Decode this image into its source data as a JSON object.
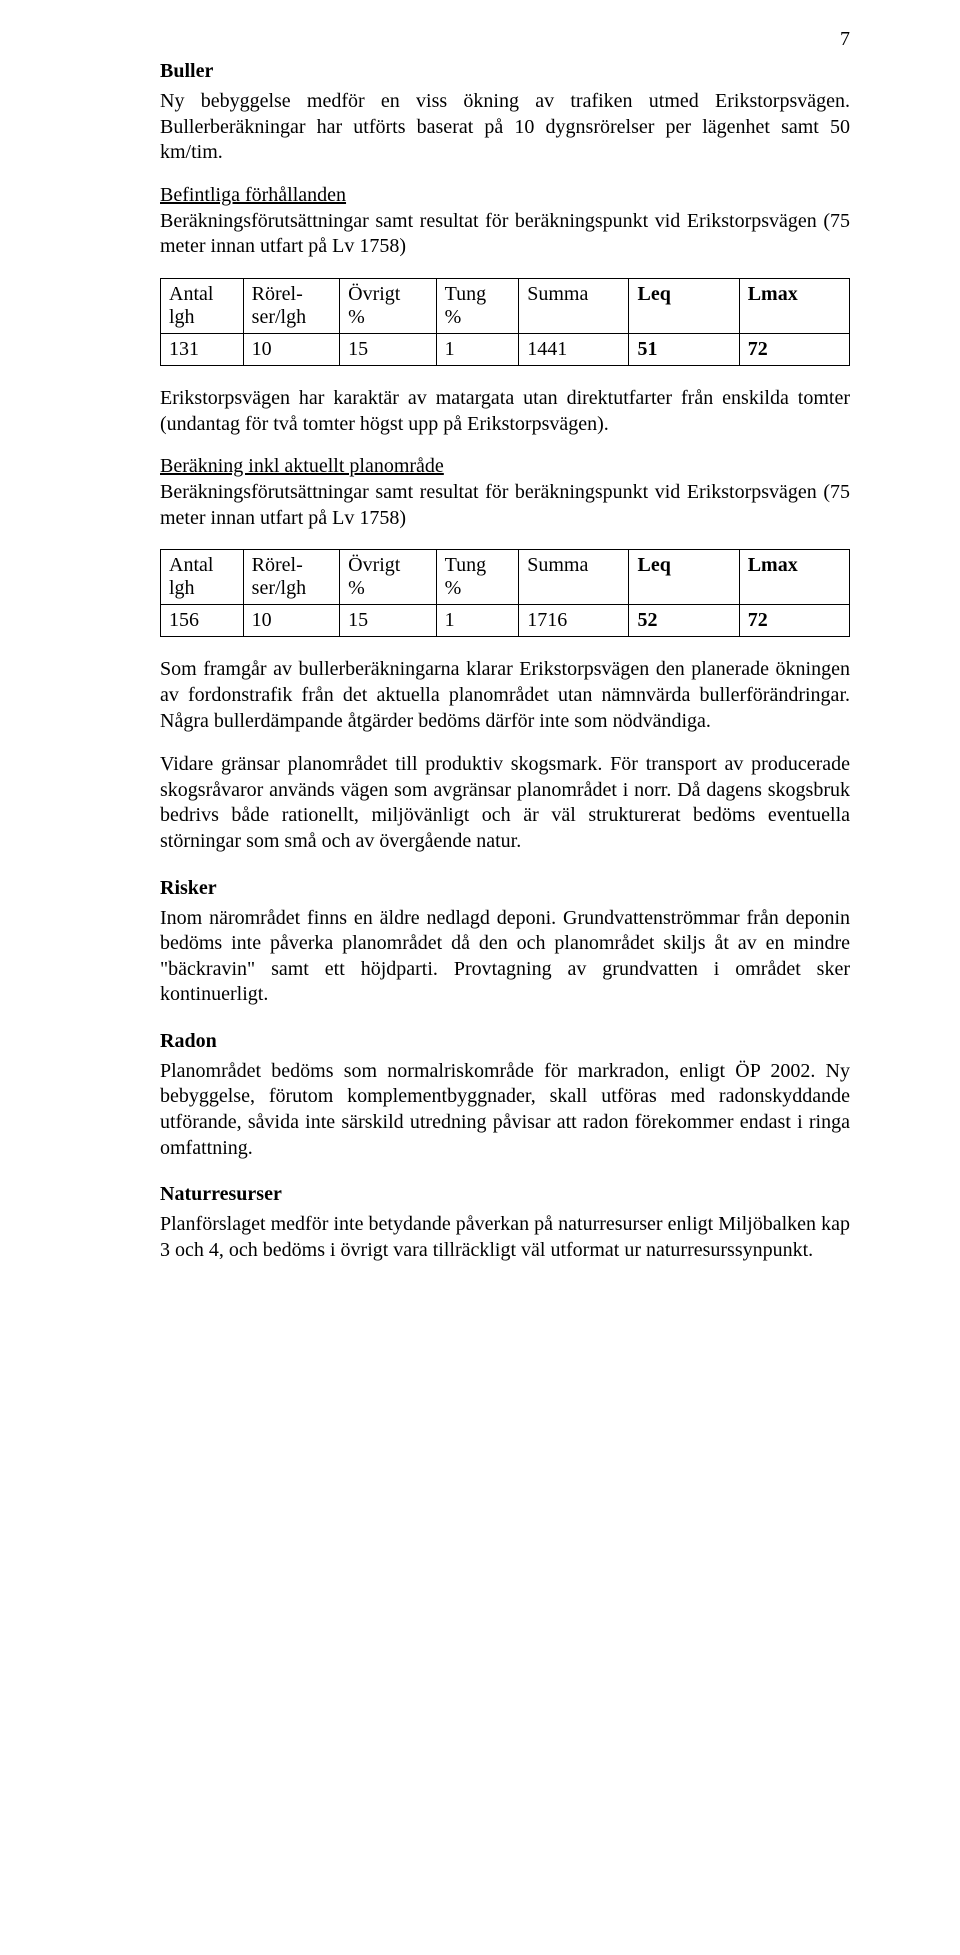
{
  "page_number": "7",
  "section_buller": {
    "heading": "Buller",
    "p1": "Ny bebyggelse medför en viss ökning av trafiken utmed Erikstorpsvägen. Bullerberäkningar har utförts baserat på 10 dygnsrörelser per lägenhet samt 50 km/tim.",
    "before_label": "Befintliga förhållanden",
    "before_text": "Beräkningsförutsättningar samt resultat för beräkningspunkt vid Erikstorpsvägen (75 meter innan utfart på Lv 1758)",
    "table1_headers": {
      "c1a": "Antal",
      "c1b": "lgh",
      "c2a": "Rörel-",
      "c2b": "ser/lgh",
      "c3a": "Övrigt",
      "c3b": "%",
      "c4a": "Tung",
      "c4b": "%",
      "c5": "Summa",
      "c6": "Leq",
      "c7": "Lmax"
    },
    "table1_row": {
      "c1": "131",
      "c2": "10",
      "c3": "15",
      "c4": "1",
      "c5": "1441",
      "c6": "51",
      "c7": "72"
    },
    "mid_text": "Erikstorpsvägen har karaktär av matargata utan direktutfarter från enskilda tomter (undantag för två tomter högst upp på Erikstorpsvägen).",
    "after_label": "Beräkning inkl aktuellt planområde",
    "after_text": "Beräkningsförutsättningar samt resultat för beräkningspunkt vid Erikstorpsvägen (75 meter innan utfart på Lv 1758)",
    "table2_headers": {
      "c1a": "Antal",
      "c1b": "lgh",
      "c2a": "Rörel-",
      "c2b": "ser/lgh",
      "c3a": "Övrigt",
      "c3b": "%",
      "c4a": "Tung",
      "c4b": "%",
      "c5": "Summa",
      "c6": "Leq",
      "c7": "Lmax"
    },
    "table2_row": {
      "c1": "156",
      "c2": "10",
      "c3": "15",
      "c4": "1",
      "c5": "1716",
      "c6": "52",
      "c7": "72"
    },
    "p2": "Som framgår av bullerberäkningarna klarar Erikstorpsvägen den planerade ökningen av fordonstrafik från det aktuella planområdet utan nämnvärda bullerförändringar. Några bullerdämpande åtgärder bedöms därför inte som nödvändiga.",
    "p3": "Vidare gränsar planområdet till produktiv skogsmark. För transport av producerade skogsråvaror används vägen som avgränsar planområdet i norr. Då dagens skogsbruk bedrivs både rationellt, miljövänligt och är väl strukturerat bedöms eventuella störningar som små och av övergående natur."
  },
  "section_risker": {
    "heading": "Risker",
    "p1": "Inom närområdet finns en äldre nedlagd deponi. Grundvattenströmmar från deponin bedöms inte påverka planområdet då den och planområdet skiljs åt av en mindre \"bäckravin\" samt ett höjdparti. Provtagning av grundvatten i området sker kontinuerligt."
  },
  "section_radon": {
    "heading": "Radon",
    "p1": "Planområdet bedöms som normalriskområde för markradon, enligt ÖP 2002. Ny bebyggelse, förutom komplementbyggnader, skall utföras med radonskyddande utförande, såvida inte särskild utredning påvisar att radon förekommer endast i ringa omfattning."
  },
  "section_natur": {
    "heading": "Naturresurser",
    "p1": "Planförslaget medför inte betydande påverkan på naturresurser enligt Miljöbalken kap 3 och 4, och bedöms i övrigt vara tillräckligt väl utformat ur naturresurssynpunkt."
  }
}
